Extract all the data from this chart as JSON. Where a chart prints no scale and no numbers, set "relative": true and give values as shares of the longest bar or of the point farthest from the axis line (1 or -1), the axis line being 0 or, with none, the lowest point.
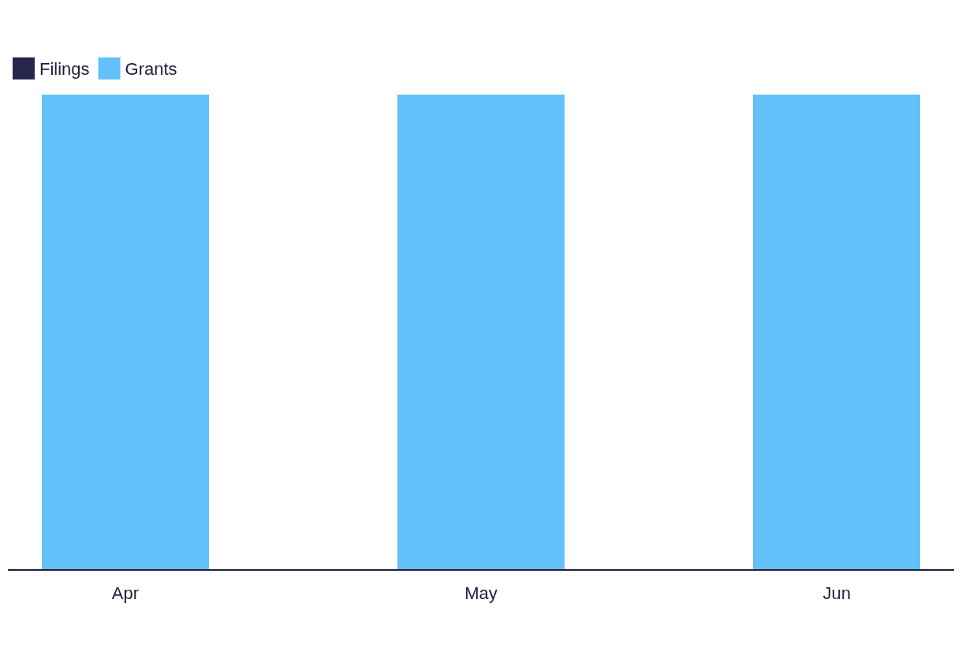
{
  "chart_data": {
    "type": "bar",
    "relative": true,
    "stacked": true,
    "legend": "top left",
    "categories": [
      "Apr",
      "May",
      "Jun"
    ],
    "series": [
      {
        "name": "Filings",
        "color": "#25254d",
        "values": [
          0,
          0,
          0
        ]
      },
      {
        "name": "Grants",
        "color": "#63c1f9",
        "values": [
          1,
          1,
          1
        ]
      }
    ]
  }
}
